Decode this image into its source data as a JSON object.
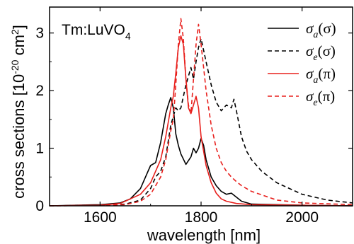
{
  "chart_data": {
    "type": "line",
    "title": "",
    "annotation": {
      "prefix": "Tm:LuVO",
      "sub": "4"
    },
    "xlabel": "wavelength [nm]",
    "ylabel": {
      "main": "cross sections [10",
      "sup": "-20",
      "mid": " cm",
      "sup2": "2",
      "end": "]"
    },
    "xlim": [
      1500,
      2100
    ],
    "ylim": [
      0,
      3.45
    ],
    "xticks": [
      1600,
      1800,
      2000
    ],
    "yticks": [
      0,
      1,
      2,
      3
    ],
    "grid": false,
    "legend_position": "top-right",
    "series": [
      {
        "label": {
          "sym": "σ",
          "sub": "a",
          "pol": "(σ)"
        },
        "color": "#000000",
        "dash": "solid",
        "points": [
          [
            1500,
            0
          ],
          [
            1600,
            0.02
          ],
          [
            1640,
            0.05
          ],
          [
            1660,
            0.12
          ],
          [
            1680,
            0.3
          ],
          [
            1695,
            0.6
          ],
          [
            1700,
            0.7
          ],
          [
            1710,
            0.75
          ],
          [
            1720,
            1.1
          ],
          [
            1730,
            1.6
          ],
          [
            1735,
            1.75
          ],
          [
            1740,
            1.88
          ],
          [
            1745,
            1.7
          ],
          [
            1750,
            1.25
          ],
          [
            1755,
            1.05
          ],
          [
            1760,
            0.9
          ],
          [
            1770,
            0.72
          ],
          [
            1780,
            0.85
          ],
          [
            1785,
            1.0
          ],
          [
            1790,
            0.92
          ],
          [
            1795,
            1.0
          ],
          [
            1800,
            1.17
          ],
          [
            1805,
            1.05
          ],
          [
            1810,
            0.8
          ],
          [
            1820,
            0.5
          ],
          [
            1830,
            0.35
          ],
          [
            1840,
            0.25
          ],
          [
            1850,
            0.2
          ],
          [
            1860,
            0.22
          ],
          [
            1870,
            0.15
          ],
          [
            1880,
            0.08
          ],
          [
            1900,
            0.03
          ],
          [
            2000,
            0.01
          ],
          [
            2100,
            0
          ]
        ]
      },
      {
        "label": {
          "sym": "σ",
          "sub": "e",
          "pol": "(σ)"
        },
        "color": "#000000",
        "dash": "dashed",
        "points": [
          [
            1500,
            0
          ],
          [
            1600,
            0.01
          ],
          [
            1650,
            0.03
          ],
          [
            1680,
            0.1
          ],
          [
            1700,
            0.3
          ],
          [
            1710,
            0.5
          ],
          [
            1720,
            0.6
          ],
          [
            1730,
            0.85
          ],
          [
            1740,
            1.4
          ],
          [
            1750,
            1.7
          ],
          [
            1755,
            1.65
          ],
          [
            1760,
            1.7
          ],
          [
            1770,
            2.1
          ],
          [
            1780,
            2.4
          ],
          [
            1785,
            2.2
          ],
          [
            1790,
            2.5
          ],
          [
            1795,
            2.75
          ],
          [
            1800,
            2.9
          ],
          [
            1805,
            2.7
          ],
          [
            1810,
            2.5
          ],
          [
            1820,
            2.1
          ],
          [
            1830,
            1.8
          ],
          [
            1840,
            1.65
          ],
          [
            1850,
            1.75
          ],
          [
            1860,
            1.7
          ],
          [
            1865,
            1.85
          ],
          [
            1870,
            1.65
          ],
          [
            1880,
            1.2
          ],
          [
            1890,
            0.95
          ],
          [
            1900,
            0.8
          ],
          [
            1920,
            0.6
          ],
          [
            1950,
            0.4
          ],
          [
            2000,
            0.2
          ],
          [
            2050,
            0.1
          ],
          [
            2100,
            0.05
          ]
        ]
      },
      {
        "label": {
          "sym": "σ",
          "sub": "a",
          "pol": "(π)"
        },
        "color": "#e8201d",
        "dash": "solid",
        "points": [
          [
            1500,
            0
          ],
          [
            1600,
            0.01
          ],
          [
            1640,
            0.04
          ],
          [
            1680,
            0.2
          ],
          [
            1700,
            0.4
          ],
          [
            1720,
            0.8
          ],
          [
            1730,
            1.2
          ],
          [
            1740,
            1.7
          ],
          [
            1745,
            1.9
          ],
          [
            1750,
            2.3
          ],
          [
            1755,
            2.75
          ],
          [
            1760,
            2.95
          ],
          [
            1765,
            2.8
          ],
          [
            1770,
            2.2
          ],
          [
            1775,
            1.7
          ],
          [
            1780,
            1.6
          ],
          [
            1785,
            1.75
          ],
          [
            1790,
            1.9
          ],
          [
            1795,
            1.7
          ],
          [
            1800,
            1.2
          ],
          [
            1810,
            0.7
          ],
          [
            1820,
            0.4
          ],
          [
            1830,
            0.22
          ],
          [
            1840,
            0.12
          ],
          [
            1850,
            0.08
          ],
          [
            1870,
            0.04
          ],
          [
            1900,
            0.02
          ],
          [
            2000,
            0.01
          ],
          [
            2100,
            0
          ]
        ]
      },
      {
        "label": {
          "sym": "σ",
          "sub": "e",
          "pol": "(π)"
        },
        "color": "#e8201d",
        "dash": "dashed",
        "points": [
          [
            1500,
            0
          ],
          [
            1600,
            0.01
          ],
          [
            1650,
            0.02
          ],
          [
            1680,
            0.08
          ],
          [
            1700,
            0.2
          ],
          [
            1720,
            0.5
          ],
          [
            1730,
            0.8
          ],
          [
            1740,
            1.3
          ],
          [
            1745,
            1.5
          ],
          [
            1750,
            2.1
          ],
          [
            1755,
            2.8
          ],
          [
            1760,
            3.25
          ],
          [
            1765,
            2.9
          ],
          [
            1770,
            2.2
          ],
          [
            1775,
            1.75
          ],
          [
            1780,
            1.6
          ],
          [
            1785,
            2.2
          ],
          [
            1790,
            2.8
          ],
          [
            1795,
            3.15
          ],
          [
            1800,
            2.8
          ],
          [
            1805,
            2.4
          ],
          [
            1810,
            2.0
          ],
          [
            1820,
            1.4
          ],
          [
            1830,
            1.0
          ],
          [
            1840,
            0.75
          ],
          [
            1850,
            0.6
          ],
          [
            1860,
            0.5
          ],
          [
            1870,
            0.42
          ],
          [
            1880,
            0.35
          ],
          [
            1900,
            0.25
          ],
          [
            1950,
            0.1
          ],
          [
            2000,
            0.05
          ],
          [
            2100,
            0.02
          ]
        ]
      }
    ]
  }
}
